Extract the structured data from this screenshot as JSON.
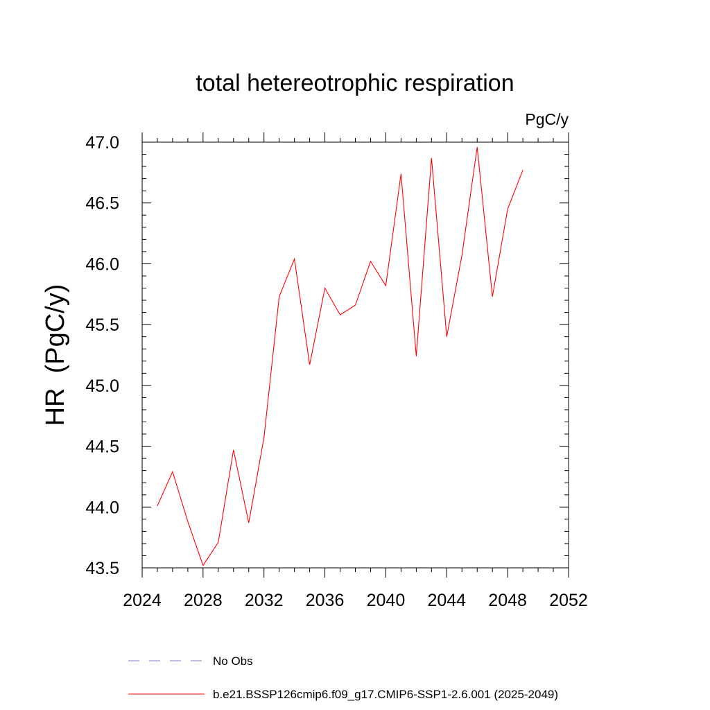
{
  "chart_data": {
    "type": "line",
    "title": "total hetereotrophic respiration",
    "units_label": "PgC/y",
    "ylabel": "HR  (PgC/y)",
    "xlabel": "",
    "xlim": [
      2024,
      2052
    ],
    "ylim": [
      43.5,
      47.0
    ],
    "x_ticks": [
      2024,
      2028,
      2032,
      2036,
      2040,
      2044,
      2048,
      2052
    ],
    "x_tick_labels": [
      "2024",
      "2028",
      "2032",
      "2036",
      "2040",
      "2044",
      "2048",
      "2052"
    ],
    "y_ticks": [
      43.5,
      44.0,
      44.5,
      45.0,
      45.5,
      46.0,
      46.5,
      47.0
    ],
    "y_tick_labels": [
      "43.5",
      "44.0",
      "44.5",
      "45.0",
      "45.5",
      "46.0",
      "46.5",
      "47.0"
    ],
    "grid": false,
    "series": [
      {
        "name": "b.e21.BSSP126cmip6.f09_g17.CMIP6-SSP1-2.6.001 (2025-2049)",
        "color": "#ff0000",
        "x": [
          2025,
          2026,
          2027,
          2028,
          2029,
          2030,
          2031,
          2032,
          2033,
          2034,
          2035,
          2036,
          2037,
          2038,
          2039,
          2040,
          2041,
          2042,
          2043,
          2044,
          2045,
          2046,
          2047,
          2048,
          2049
        ],
        "values": [
          44.01,
          44.29,
          43.88,
          43.52,
          43.71,
          44.47,
          43.87,
          44.57,
          45.73,
          46.04,
          45.17,
          45.8,
          45.58,
          45.66,
          46.02,
          45.82,
          46.74,
          45.24,
          46.87,
          45.4,
          46.07,
          46.96,
          45.73,
          46.45,
          46.77
        ]
      }
    ],
    "legend": {
      "position": "bottom",
      "entries": [
        {
          "label": "No Obs",
          "style": "dashed",
          "color": "#8080c0"
        },
        {
          "label": "b.e21.BSSP126cmip6.f09_g17.CMIP6-SSP1-2.6.001 (2025-2049)",
          "style": "solid",
          "color": "#ff0000"
        }
      ]
    }
  }
}
